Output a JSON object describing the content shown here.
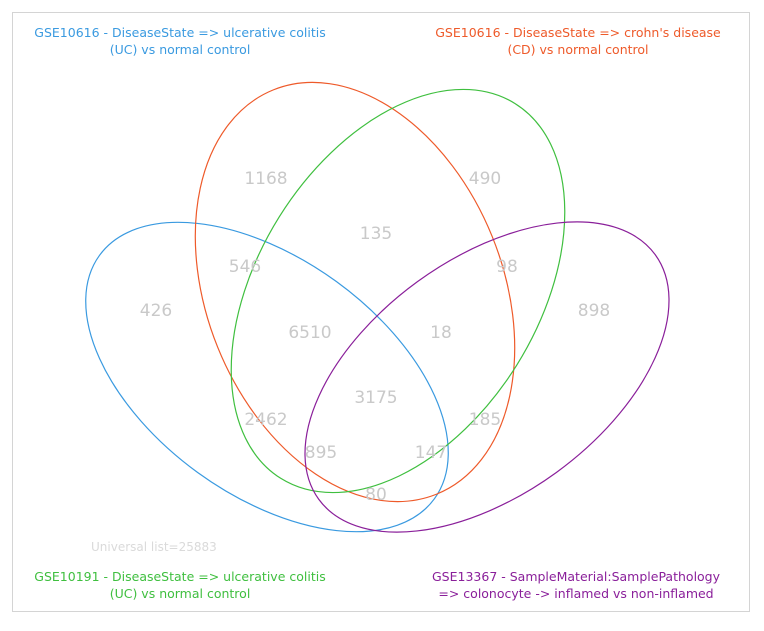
{
  "sets": [
    {
      "id": "uc",
      "label": "GSE10616 - DiseaseState => ulcerative colitis\n(UC) vs normal control",
      "color": "#3a9ae0"
    },
    {
      "id": "cd",
      "label": "GSE10616 - DiseaseState => crohn's disease\n(CD) vs normal control",
      "color": "#ee5a2a"
    },
    {
      "id": "uc2",
      "label": "GSE10191 - DiseaseState => ulcerative colitis\n(UC) vs normal control",
      "color": "#3fbf3f"
    },
    {
      "id": "ss",
      "label": "GSE13367 - SampleMaterial:SamplePathology\n=> colonocyte -> inflamed vs non-inflamed",
      "color": "#8a1f9a"
    }
  ],
  "regions": [
    {
      "id": "uc-only",
      "sets": [
        "uc"
      ],
      "count": "426"
    },
    {
      "id": "cd-only",
      "sets": [
        "cd"
      ],
      "count": "1168"
    },
    {
      "id": "uc2-only",
      "sets": [
        "uc2"
      ],
      "count": "490"
    },
    {
      "id": "ss-only",
      "sets": [
        "ss"
      ],
      "count": "898"
    },
    {
      "id": "uc-cd",
      "sets": [
        "uc",
        "cd"
      ],
      "count": "546"
    },
    {
      "id": "cd-uc2",
      "sets": [
        "cd",
        "uc2"
      ],
      "count": "135"
    },
    {
      "id": "uc2-ss",
      "sets": [
        "uc2",
        "ss"
      ],
      "count": "98"
    },
    {
      "id": "uc-cd-uc2",
      "sets": [
        "uc",
        "cd",
        "uc2"
      ],
      "count": "6510"
    },
    {
      "id": "cd-uc2-ss",
      "sets": [
        "cd",
        "uc2",
        "ss"
      ],
      "count": "18"
    },
    {
      "id": "uc-uc2",
      "sets": [
        "uc",
        "uc2"
      ],
      "count": "2462"
    },
    {
      "id": "all",
      "sets": [
        "uc",
        "cd",
        "uc2",
        "ss"
      ],
      "count": "3175"
    },
    {
      "id": "cd-ss",
      "sets": [
        "cd",
        "ss"
      ],
      "count": "185"
    },
    {
      "id": "uc-uc2-ss",
      "sets": [
        "uc",
        "uc2",
        "ss"
      ],
      "count": "895"
    },
    {
      "id": "uc-cd-ss",
      "sets": [
        "uc",
        "cd",
        "ss"
      ],
      "count": "147"
    },
    {
      "id": "uc-ss",
      "sets": [
        "uc",
        "ss"
      ],
      "count": "80"
    }
  ],
  "universal": "Universal list=25883"
}
